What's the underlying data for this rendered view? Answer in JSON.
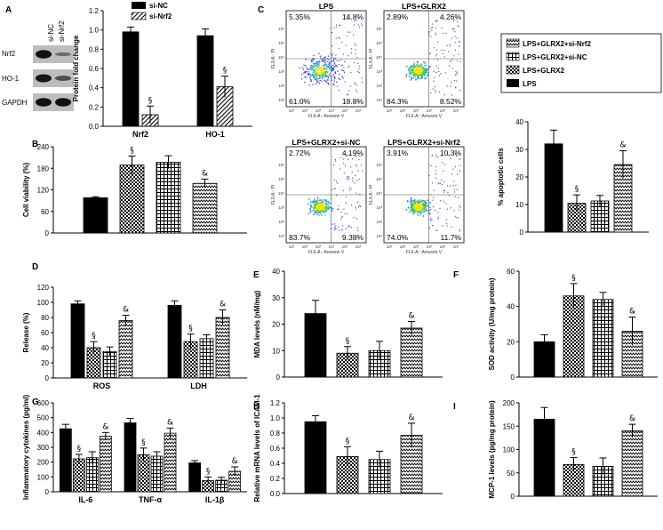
{
  "colors": {
    "black": "#000000",
    "white": "#ffffff",
    "band": "#111111",
    "blot_bg": "#bdbdbd"
  },
  "panels": {
    "A": "A",
    "B": "B",
    "C": "C",
    "D": "D",
    "E": "E",
    "F": "F",
    "G": "G",
    "H": "H",
    "I": "I"
  },
  "blot": {
    "lanes": [
      "si-NC",
      "si-Nrf2"
    ],
    "rows": [
      {
        "name": "Nrf2",
        "intensity": [
          1.0,
          0.2
        ]
      },
      {
        "name": "HO-1",
        "intensity": [
          0.95,
          0.45
        ]
      },
      {
        "name": "GAPDH",
        "intensity": [
          1.0,
          1.0
        ]
      }
    ]
  },
  "legend_A": [
    "si-NC",
    "si-Nrf2"
  ],
  "legend_C": [
    "LPS+GLRX2+si-Nrf2",
    "LPS+GLRX2+si-NC",
    "LPS+GLRX2",
    "LPS"
  ],
  "flow": {
    "xlabel": "FL6-A:: Annexin V",
    "ylabel": "FL3-A:: PI",
    "plots": [
      {
        "title": "LPS",
        "q": [
          "5.35%",
          "14.8%",
          "61.0%",
          "18.8%"
        ]
      },
      {
        "title": "LPS+GLRX2",
        "q": [
          "2.89%",
          "4.26%",
          "84.3%",
          "8.52%"
        ]
      },
      {
        "title": "LPS+GLRX2+si-NC",
        "q": [
          "2.72%",
          "4.19%",
          "83.7%",
          "9.38%"
        ]
      },
      {
        "title": "LPS+GLRX2+si-Nrf2",
        "q": [
          "3.91%",
          "10.3%",
          "74.0%",
          "11.7%"
        ]
      }
    ]
  },
  "chart_data": [
    {
      "id": "A",
      "type": "bar",
      "ylabel": "Protein fold change",
      "ylim": [
        0,
        1.2
      ],
      "yticks": [
        "0.0",
        "0.2",
        "0.4",
        "0.6",
        "0.8",
        "1.0",
        "1.2"
      ],
      "groups": [
        "Nrf2",
        "HO-1"
      ],
      "series": [
        {
          "name": "si-NC",
          "values": [
            0.98,
            0.94
          ],
          "errors": [
            0.05,
            0.07
          ]
        },
        {
          "name": "si-Nrf2",
          "values": [
            0.12,
            0.41
          ],
          "errors": [
            0.09,
            0.11
          ]
        }
      ],
      "annotations": [
        {
          "group": 0,
          "series": 1,
          "text": "§"
        },
        {
          "group": 1,
          "series": 1,
          "text": "§"
        }
      ]
    },
    {
      "id": "B",
      "type": "bar",
      "ylabel": "Cell viability (%)",
      "ylim": [
        0,
        240
      ],
      "yticks": [
        "0",
        "60",
        "120",
        "180",
        "240"
      ],
      "groups": [
        ""
      ],
      "series": [
        {
          "name": "LPS",
          "values": [
            98
          ],
          "errors": [
            3
          ]
        },
        {
          "name": "LPS+GLRX2",
          "values": [
            189
          ],
          "errors": [
            25
          ]
        },
        {
          "name": "LPS+GLRX2+si-NC",
          "values": [
            197
          ],
          "errors": [
            18
          ]
        },
        {
          "name": "LPS+GLRX2+si-Nrf2",
          "values": [
            138
          ],
          "errors": [
            12
          ]
        }
      ],
      "annotations": [
        {
          "group": 0,
          "series": 1,
          "text": "§"
        },
        {
          "group": 0,
          "series": 3,
          "text": "&"
        }
      ]
    },
    {
      "id": "C",
      "type": "bar",
      "ylabel": "% apoptotic cells",
      "ylim": [
        0,
        40
      ],
      "yticks": [
        "0",
        "10",
        "20",
        "30",
        "40"
      ],
      "groups": [
        ""
      ],
      "series": [
        {
          "name": "LPS",
          "values": [
            32
          ],
          "errors": [
            5
          ]
        },
        {
          "name": "LPS+GLRX2",
          "values": [
            10.5
          ],
          "errors": [
            3
          ]
        },
        {
          "name": "LPS+GLRX2+si-NC",
          "values": [
            11.3
          ],
          "errors": [
            2
          ]
        },
        {
          "name": "LPS+GLRX2+si-Nrf2",
          "values": [
            24.5
          ],
          "errors": [
            5
          ]
        }
      ],
      "annotations": [
        {
          "group": 0,
          "series": 1,
          "text": "§"
        },
        {
          "group": 0,
          "series": 3,
          "text": "&"
        }
      ]
    },
    {
      "id": "D",
      "type": "bar",
      "ylabel": "Release (%)",
      "ylim": [
        0,
        120
      ],
      "yticks": [
        "0",
        "20",
        "40",
        "60",
        "80",
        "100",
        "120"
      ],
      "groups": [
        "ROS",
        "LDH"
      ],
      "series": [
        {
          "name": "LPS",
          "values": [
            98,
            96
          ],
          "errors": [
            4,
            6
          ]
        },
        {
          "name": "LPS+GLRX2",
          "values": [
            40,
            48
          ],
          "errors": [
            8,
            10
          ]
        },
        {
          "name": "LPS+GLRX2+si-NC",
          "values": [
            35,
            52
          ],
          "errors": [
            6,
            5
          ]
        },
        {
          "name": "LPS+GLRX2+si-Nrf2",
          "values": [
            76,
            80
          ],
          "errors": [
            7,
            10
          ]
        }
      ],
      "annotations": [
        {
          "group": 0,
          "series": 1,
          "text": "§"
        },
        {
          "group": 0,
          "series": 3,
          "text": "&"
        },
        {
          "group": 1,
          "series": 1,
          "text": "§"
        },
        {
          "group": 1,
          "series": 3,
          "text": "&"
        }
      ]
    },
    {
      "id": "E",
      "type": "bar",
      "ylabel": "MDA levels (nM/mg)",
      "ylim": [
        0,
        40
      ],
      "yticks": [
        "0",
        "10",
        "20",
        "30",
        "40"
      ],
      "groups": [
        ""
      ],
      "series": [
        {
          "name": "LPS",
          "values": [
            24
          ],
          "errors": [
            5
          ]
        },
        {
          "name": "LPS+GLRX2",
          "values": [
            9
          ],
          "errors": [
            2.5
          ]
        },
        {
          "name": "LPS+GLRX2+si-NC",
          "values": [
            10
          ],
          "errors": [
            3.5
          ]
        },
        {
          "name": "LPS+GLRX2+si-Nrf2",
          "values": [
            18.5
          ],
          "errors": [
            2.5
          ]
        }
      ],
      "annotations": [
        {
          "group": 0,
          "series": 1,
          "text": "§"
        },
        {
          "group": 0,
          "series": 3,
          "text": "&"
        }
      ]
    },
    {
      "id": "F",
      "type": "bar",
      "ylabel": "SOD activity (U/mg protein)",
      "ylim": [
        0,
        60
      ],
      "yticks": [
        "0",
        "20",
        "40",
        "60"
      ],
      "groups": [
        ""
      ],
      "series": [
        {
          "name": "LPS",
          "values": [
            20
          ],
          "errors": [
            4
          ]
        },
        {
          "name": "LPS+GLRX2",
          "values": [
            46
          ],
          "errors": [
            7
          ]
        },
        {
          "name": "LPS+GLRX2+si-NC",
          "values": [
            44
          ],
          "errors": [
            4
          ]
        },
        {
          "name": "LPS+GLRX2+si-Nrf2",
          "values": [
            26
          ],
          "errors": [
            8
          ]
        }
      ],
      "annotations": [
        {
          "group": 0,
          "series": 1,
          "text": "§"
        },
        {
          "group": 0,
          "series": 3,
          "text": "&"
        }
      ]
    },
    {
      "id": "G",
      "type": "bar",
      "ylabel": "Inflammatory cytokines (pg/ml)",
      "ylim": [
        0,
        600
      ],
      "yticks": [
        "0",
        "100",
        "200",
        "300",
        "400",
        "500",
        "600"
      ],
      "groups": [
        "IL-6",
        "TNF-α",
        "IL-1β"
      ],
      "series": [
        {
          "name": "LPS",
          "values": [
            425,
            465,
            195
          ],
          "errors": [
            30,
            30,
            15
          ]
        },
        {
          "name": "LPS+GLRX2",
          "values": [
            222,
            250,
            75
          ],
          "errors": [
            30,
            45,
            25
          ]
        },
        {
          "name": "LPS+GLRX2+si-NC",
          "values": [
            230,
            240,
            78
          ],
          "errors": [
            40,
            30,
            20
          ]
        },
        {
          "name": "LPS+GLRX2+si-Nrf2",
          "values": [
            375,
            395,
            138
          ],
          "errors": [
            25,
            35,
            30
          ]
        }
      ],
      "annotations": [
        {
          "group": 0,
          "series": 1,
          "text": "§"
        },
        {
          "group": 0,
          "series": 3,
          "text": "&"
        },
        {
          "group": 1,
          "series": 1,
          "text": "§"
        },
        {
          "group": 1,
          "series": 3,
          "text": "&"
        },
        {
          "group": 2,
          "series": 1,
          "text": "§"
        },
        {
          "group": 2,
          "series": 3,
          "text": "&"
        }
      ]
    },
    {
      "id": "H",
      "type": "bar",
      "ylabel": "Relative mRNA levels of ICAM-1",
      "ylim": [
        0,
        1.2
      ],
      "yticks": [
        "0.0",
        "0.2",
        "0.4",
        "0.6",
        "0.8",
        "1.0",
        "1.2"
      ],
      "groups": [
        ""
      ],
      "series": [
        {
          "name": "LPS",
          "values": [
            0.95
          ],
          "errors": [
            0.08
          ]
        },
        {
          "name": "LPS+GLRX2",
          "values": [
            0.49
          ],
          "errors": [
            0.13
          ]
        },
        {
          "name": "LPS+GLRX2+si-NC",
          "values": [
            0.45
          ],
          "errors": [
            0.11
          ]
        },
        {
          "name": "LPS+GLRX2+si-Nrf2",
          "values": [
            0.77
          ],
          "errors": [
            0.16
          ]
        }
      ],
      "annotations": [
        {
          "group": 0,
          "series": 1,
          "text": "§"
        },
        {
          "group": 0,
          "series": 3,
          "text": "&"
        }
      ]
    },
    {
      "id": "I",
      "type": "bar",
      "ylabel": "MCP-1 levels (pg/mg protein)",
      "ylim": [
        0,
        200
      ],
      "yticks": [
        "0",
        "50",
        "100",
        "150",
        "200"
      ],
      "groups": [
        ""
      ],
      "series": [
        {
          "name": "LPS",
          "values": [
            165
          ],
          "errors": [
            25
          ]
        },
        {
          "name": "LPS+GLRX2",
          "values": [
            68
          ],
          "errors": [
            15
          ]
        },
        {
          "name": "LPS+GLRX2+si-NC",
          "values": [
            64
          ],
          "errors": [
            18
          ]
        },
        {
          "name": "LPS+GLRX2+si-Nrf2",
          "values": [
            140
          ],
          "errors": [
            14
          ]
        }
      ],
      "annotations": [
        {
          "group": 0,
          "series": 1,
          "text": "§"
        },
        {
          "group": 0,
          "series": 3,
          "text": "&"
        }
      ]
    }
  ]
}
